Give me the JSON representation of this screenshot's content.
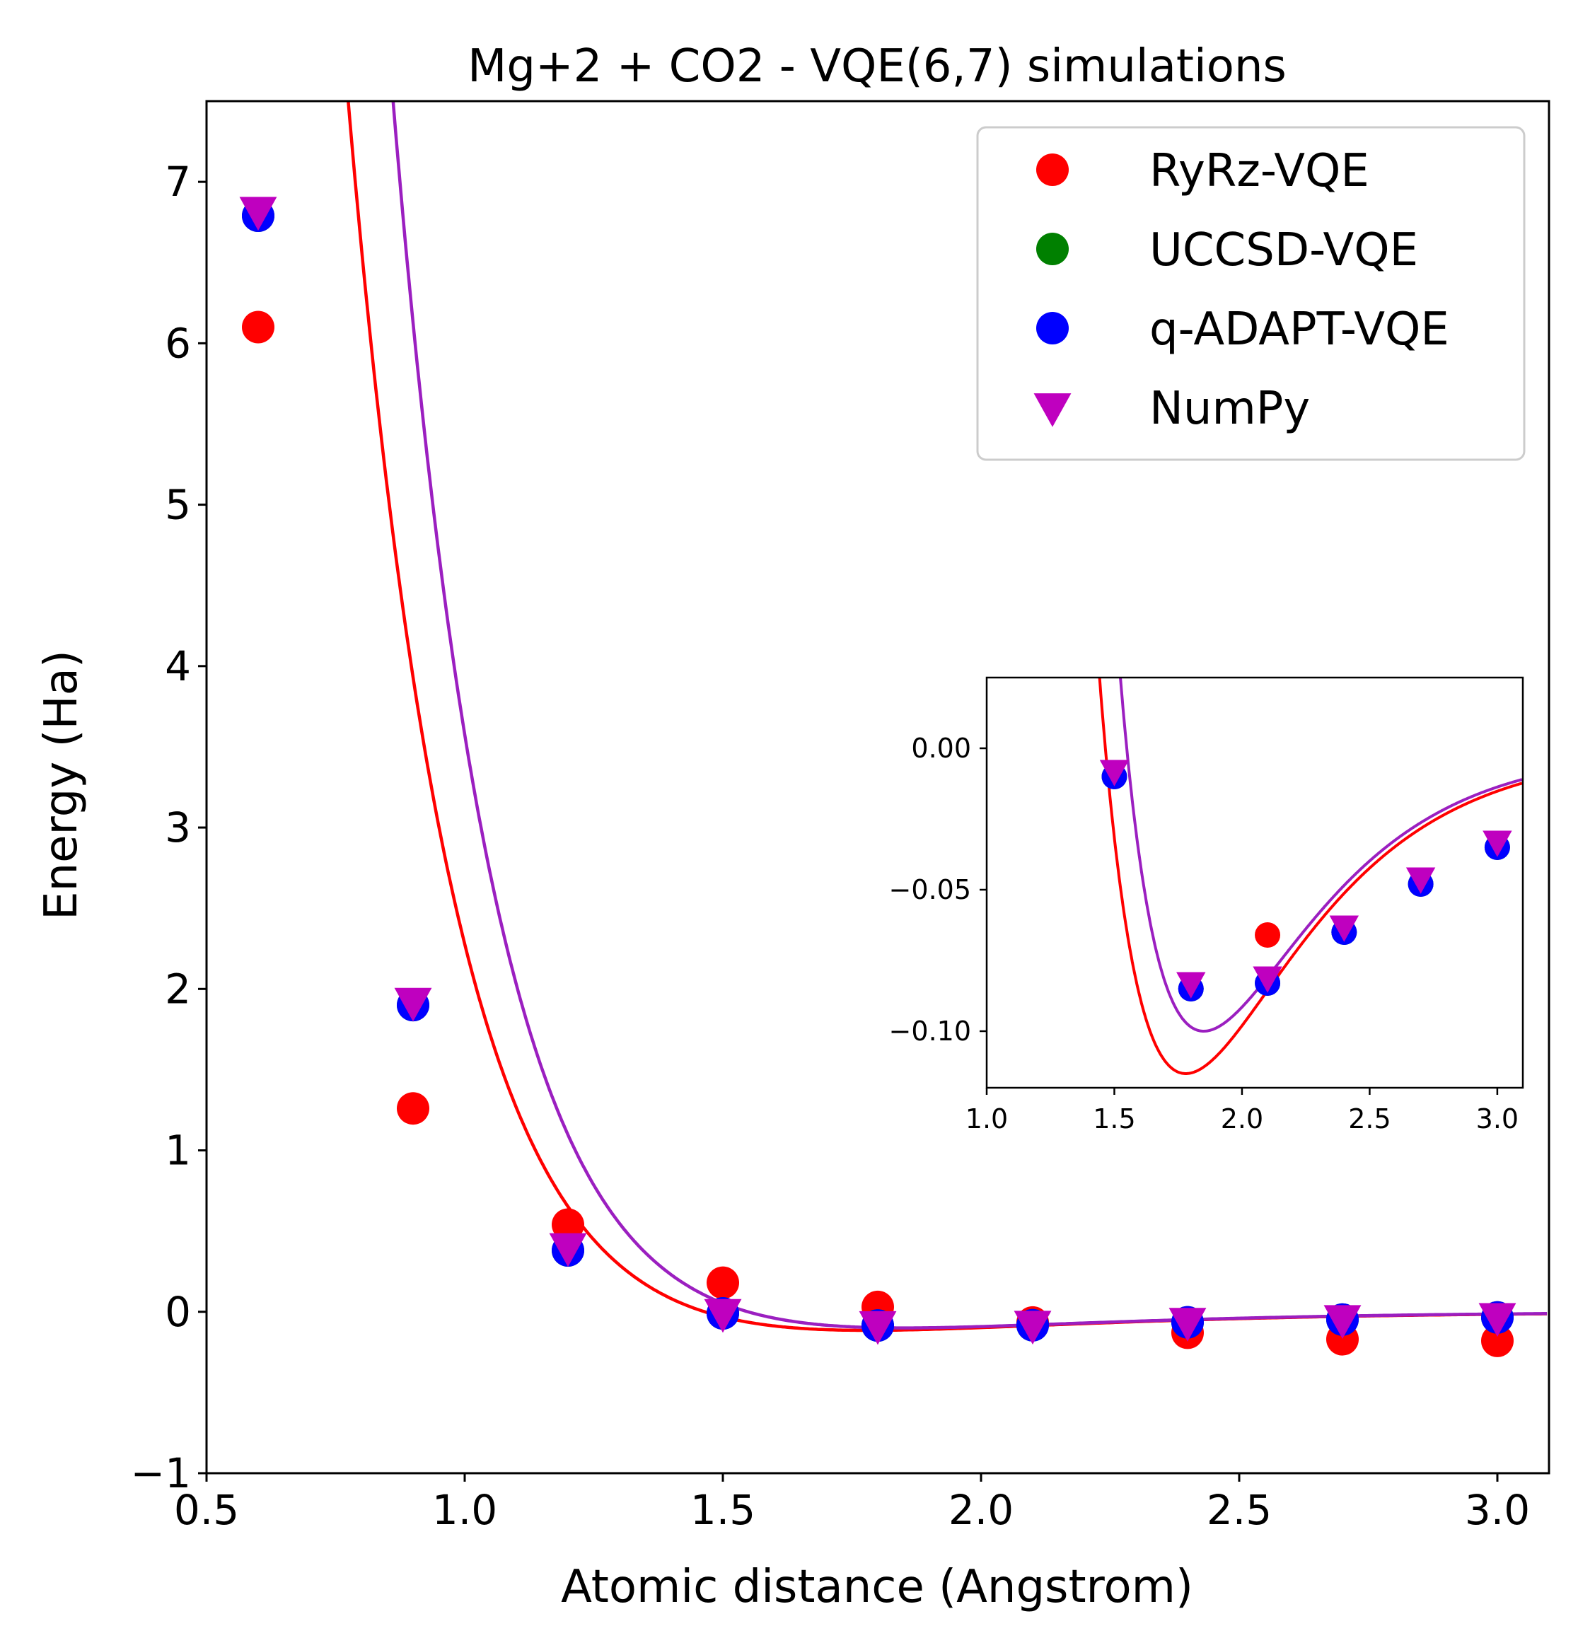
{
  "chart_data": {
    "type": "scatter",
    "title": "Mg+2 + CO2 - VQE(6,7) simulations",
    "xlabel": "Atomic distance (Angstrom)",
    "ylabel": "Energy (Ha)",
    "xlim": [
      0.5,
      3.1
    ],
    "ylim": [
      -1,
      7.5
    ],
    "xticks": [
      0.5,
      1.0,
      1.5,
      2.0,
      2.5,
      3.0
    ],
    "xtick_labels": [
      "0.5",
      "1.0",
      "1.5",
      "2.0",
      "2.5",
      "3.0"
    ],
    "yticks": [
      -1,
      0,
      1,
      2,
      3,
      4,
      5,
      6,
      7
    ],
    "ytick_labels": [
      "−1",
      "0",
      "1",
      "2",
      "3",
      "4",
      "5",
      "6",
      "7"
    ],
    "legend_position": "top-right",
    "series": [
      {
        "name": "RyRz-VQE",
        "marker": "circle",
        "color": "#ff0000",
        "x": [
          0.6,
          0.9,
          1.2,
          1.5,
          1.8,
          2.1,
          2.4,
          2.7,
          3.0
        ],
        "y": [
          6.1,
          1.26,
          0.54,
          0.18,
          0.03,
          -0.066,
          -0.13,
          -0.17,
          -0.18
        ]
      },
      {
        "name": "UCCSD-VQE",
        "marker": "circle",
        "color": "#008000",
        "x": [
          0.6,
          0.9,
          1.2,
          1.5,
          1.8,
          2.1,
          2.4,
          2.7,
          3.0
        ],
        "y": [
          6.79,
          1.9,
          0.38,
          -0.01,
          -0.085,
          -0.083,
          -0.065,
          -0.048,
          -0.035
        ]
      },
      {
        "name": "q-ADAPT-VQE",
        "marker": "circle",
        "color": "#0000ff",
        "x": [
          0.6,
          0.9,
          1.2,
          1.5,
          1.8,
          2.1,
          2.4,
          2.7,
          3.0
        ],
        "y": [
          6.79,
          1.9,
          0.38,
          -0.01,
          -0.085,
          -0.083,
          -0.065,
          -0.048,
          -0.035
        ]
      },
      {
        "name": "NumPy",
        "marker": "triangle-down",
        "color": "#bf00bf",
        "x": [
          0.6,
          0.9,
          1.2,
          1.5,
          1.8,
          2.1,
          2.4,
          2.7,
          3.0
        ],
        "y": [
          6.82,
          1.92,
          0.4,
          -0.008,
          -0.083,
          -0.081,
          -0.063,
          -0.046,
          -0.033
        ]
      }
    ],
    "fit_curves": [
      {
        "name": "red-fit",
        "color": "#ff0000",
        "x_shift": 0.02,
        "depth": 0.115,
        "re": 1.8,
        "a": 2.2
      },
      {
        "name": "purple-fit",
        "color": "#9b1fc0",
        "x_shift": 0.0,
        "depth": 0.1,
        "re": 1.85,
        "a": 2.3
      }
    ],
    "inset": {
      "xlim": [
        1.0,
        3.1
      ],
      "ylim": [
        -0.12,
        0.025
      ],
      "xticks": [
        1.0,
        1.5,
        2.0,
        2.5,
        3.0
      ],
      "xtick_labels": [
        "1.0",
        "1.5",
        "2.0",
        "2.5",
        "3.0"
      ],
      "yticks": [
        0.0,
        -0.05,
        -0.1
      ],
      "ytick_labels": [
        "0.00",
        "−0.05",
        "−0.10"
      ]
    }
  }
}
